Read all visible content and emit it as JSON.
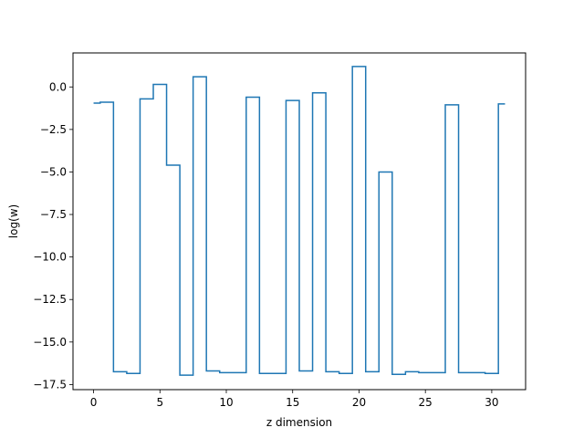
{
  "chart_data": {
    "type": "line",
    "drawstyle": "steps-mid",
    "title": "",
    "xlabel": "z dimension",
    "ylabel": "log(w)",
    "xlim": [
      -1.55,
      32.55
    ],
    "ylim": [
      -17.8,
      2.0
    ],
    "xticks": [
      0,
      5,
      10,
      15,
      20,
      25,
      30
    ],
    "xtick_labels": [
      "0",
      "5",
      "10",
      "15",
      "20",
      "25",
      "30"
    ],
    "yticks": [
      0.0,
      -2.5,
      -5.0,
      -7.5,
      -10.0,
      -12.5,
      -15.0,
      -17.5
    ],
    "ytick_labels": [
      "0.0",
      "−2.5",
      "−5.0",
      "−7.5",
      "−10.0",
      "−12.5",
      "−15.0",
      "−17.5"
    ],
    "grid": false,
    "legend": "none",
    "series": [
      {
        "color": "#1f77b4",
        "x": [
          0,
          1,
          2,
          3,
          4,
          5,
          6,
          7,
          8,
          9,
          10,
          11,
          12,
          13,
          14,
          15,
          16,
          17,
          18,
          19,
          20,
          21,
          22,
          23,
          24,
          25,
          26,
          27,
          28,
          29,
          30,
          31
        ],
        "y": [
          -0.95,
          -0.9,
          -16.75,
          -16.85,
          -0.7,
          0.15,
          -4.6,
          -16.95,
          0.6,
          -16.7,
          -16.8,
          -16.8,
          -0.6,
          -16.85,
          -16.85,
          -0.8,
          -16.7,
          -0.35,
          -16.75,
          -16.85,
          1.2,
          -16.75,
          -5.0,
          -16.9,
          -16.75,
          -16.8,
          -16.8,
          -1.05,
          -16.8,
          -16.8,
          -16.85,
          -1.0
        ]
      }
    ]
  }
}
